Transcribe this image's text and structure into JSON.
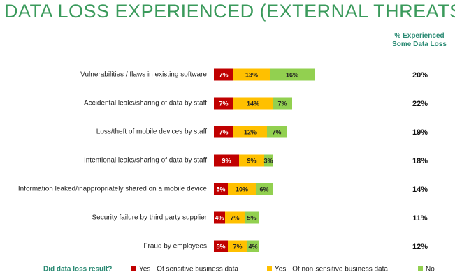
{
  "chart_data": {
    "type": "stacked_barh",
    "title": "DATA LOSS EXPERIENCED (EXTERNAL THREATS)",
    "categories": [
      "Vulnerabilities / flaws in existing software",
      "Accidental leaks/sharing of data by staff",
      "Loss/theft of mobile devices by staff",
      "Intentional leaks/sharing of data by staff",
      "Information leaked/inappropriately shared on a mobile device",
      "Security failure by third party supplier",
      "Fraud by employees"
    ],
    "series": [
      {
        "name": "Yes - Of sensitive business data",
        "color": "#c00000",
        "values": [
          7,
          7,
          7,
          9,
          5,
          4,
          5
        ],
        "value_labels": [
          "7%",
          "7%",
          "7%",
          "9%",
          "5%",
          "4%",
          "5%"
        ]
      },
      {
        "name": "Yes - Of non-sensitive business data",
        "color": "#ffc000",
        "values": [
          13,
          14,
          12,
          9,
          10,
          7,
          7
        ],
        "value_labels": [
          "13%",
          "14%",
          "12%",
          "9%",
          "10%",
          "7%",
          "7%"
        ]
      },
      {
        "name": "No",
        "color": "#92d050",
        "values": [
          16,
          7,
          7,
          3,
          6,
          5,
          4
        ],
        "value_labels": [
          "16%",
          "7%",
          "7%",
          "3%",
          "6%",
          "5%",
          "4%"
        ]
      }
    ],
    "legend_title": "Did data loss result?",
    "experienced": {
      "title": "% Experienced Some Data Loss",
      "values": [
        20,
        22,
        19,
        18,
        14,
        11,
        12
      ],
      "value_labels": [
        "20%",
        "22%",
        "19%",
        "18%",
        "14%",
        "11%",
        "12%"
      ]
    }
  }
}
